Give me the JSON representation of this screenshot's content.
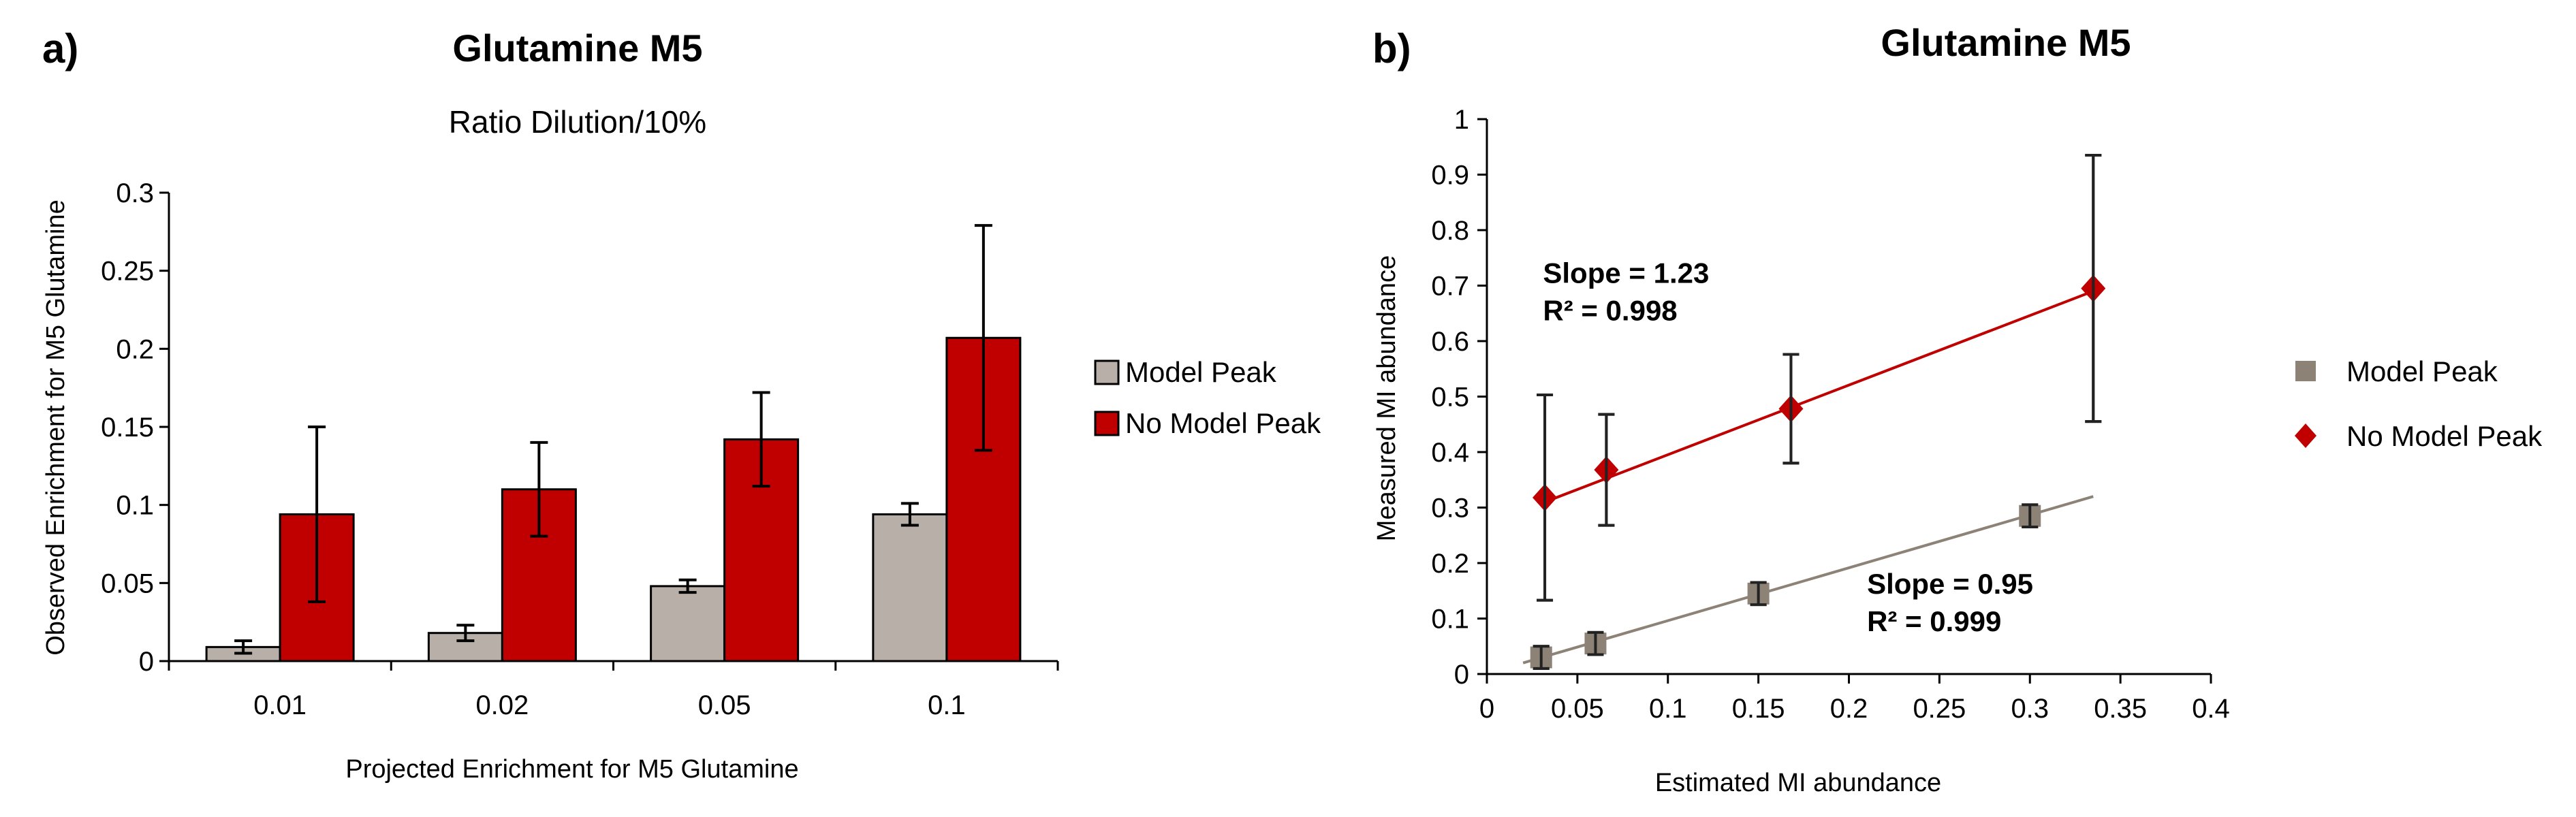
{
  "chart_data": [
    {
      "panel": "a)",
      "type": "bar",
      "title": "Glutamine M5",
      "subtitle": "Ratio Dilution/10%",
      "xlabel": "Projected Enrichment for M5 Glutamine",
      "ylabel": "Observed Enrichment for M5 Glutamine",
      "categories": [
        "0.01",
        "0.02",
        "0.05",
        "0.1"
      ],
      "ylim": [
        0,
        0.3
      ],
      "yticks": [
        "0",
        "0.05",
        "0.1",
        "0.15",
        "0.2",
        "0.25",
        "0.3"
      ],
      "legend_position": "right",
      "series": [
        {
          "name": "Model Peak",
          "color": "#b8b0a8",
          "values": [
            0.009,
            0.018,
            0.048,
            0.094
          ],
          "errors": [
            0.004,
            0.005,
            0.004,
            0.007
          ]
        },
        {
          "name": "No Model Peak",
          "color": "#c00000",
          "values": [
            0.094,
            0.11,
            0.142,
            0.207
          ],
          "errors": [
            0.056,
            0.03,
            0.03,
            0.072
          ]
        }
      ]
    },
    {
      "panel": "b)",
      "type": "scatter",
      "title": "Glutamine M5",
      "xlabel": "Estimated MI abundance",
      "ylabel": "Measured MI abundance",
      "xlim": [
        0,
        0.4
      ],
      "ylim": [
        0,
        1
      ],
      "xticks": [
        "0",
        "0.05",
        "0.1",
        "0.15",
        "0.2",
        "0.25",
        "0.3",
        "0.35",
        "0.4"
      ],
      "yticks": [
        "0",
        "0.1",
        "0.2",
        "0.3",
        "0.4",
        "0.5",
        "0.6",
        "0.7",
        "0.8",
        "0.9",
        "1"
      ],
      "legend_position": "right",
      "series": [
        {
          "name": "Model Peak",
          "color": "#8c8276",
          "marker": "square",
          "x": [
            0.03,
            0.06,
            0.15,
            0.3
          ],
          "y": [
            0.03,
            0.055,
            0.145,
            0.285
          ],
          "errors": [
            0.02,
            0.02,
            0.02,
            0.02
          ],
          "fit": {
            "x": [
              0.02,
              0.335
            ],
            "y": [
              0.02,
              0.32
            ]
          },
          "annotation": {
            "slope": "Slope = 0.95",
            "r2": "R² = 0.999"
          }
        },
        {
          "name": "No Model Peak",
          "color": "#c00000",
          "marker": "diamond",
          "x": [
            0.032,
            0.066,
            0.168,
            0.335
          ],
          "y": [
            0.318,
            0.368,
            0.478,
            0.695
          ],
          "errors": [
            0.185,
            0.1,
            0.098,
            0.24
          ],
          "fit": {
            "x": [
              0.032,
              0.335
            ],
            "y": [
              0.31,
              0.69
            ]
          },
          "annotation": {
            "slope": "Slope = 1.23",
            "r2": "R² = 0.998"
          }
        }
      ]
    }
  ]
}
